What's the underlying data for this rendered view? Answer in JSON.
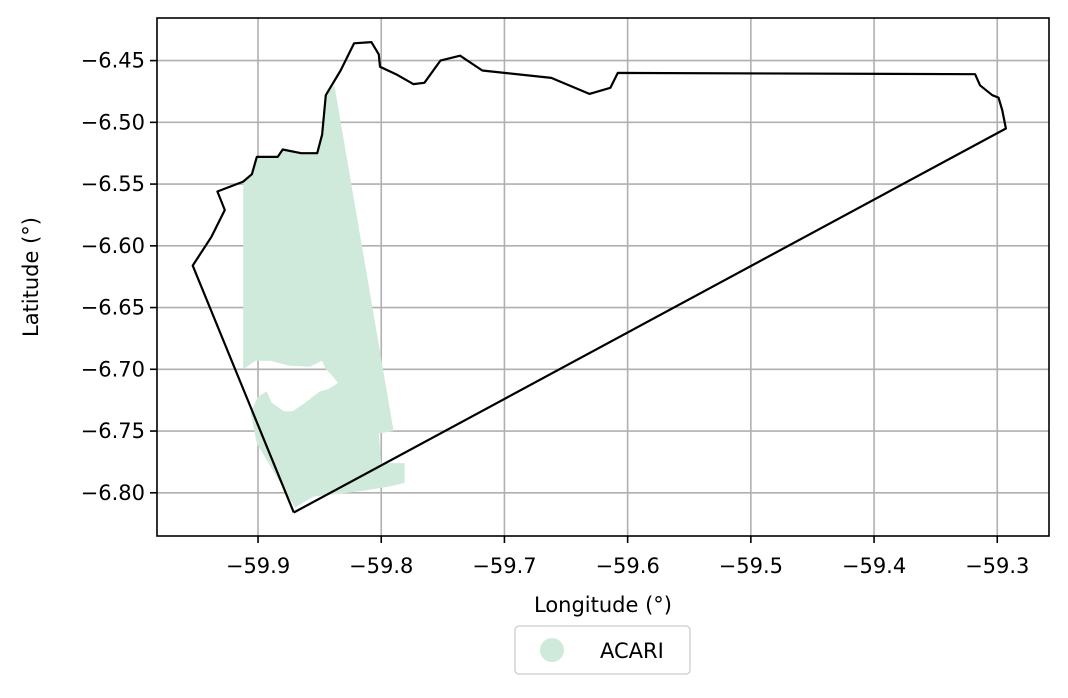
{
  "map": {
    "xlabel": "Longitude (°)",
    "ylabel": "Latitude (°)",
    "xlim": [
      -59.982,
      -59.258
    ],
    "ylim": [
      -6.835,
      -6.4155
    ],
    "grid": true,
    "x_ticks": [
      {
        "value": -59.9,
        "label": "−59.9"
      },
      {
        "value": -59.8,
        "label": "−59.8"
      },
      {
        "value": -59.7,
        "label": "−59.7"
      },
      {
        "value": -59.6,
        "label": "−59.6"
      },
      {
        "value": -59.5,
        "label": "−59.5"
      },
      {
        "value": -59.4,
        "label": "−59.4"
      },
      {
        "value": -59.3,
        "label": "−59.3"
      }
    ],
    "y_ticks": [
      {
        "value": -6.45,
        "label": "−6.45"
      },
      {
        "value": -6.5,
        "label": "−6.50"
      },
      {
        "value": -6.55,
        "label": "−6.55"
      },
      {
        "value": -6.6,
        "label": "−6.60"
      },
      {
        "value": -6.65,
        "label": "−6.65"
      },
      {
        "value": -6.7,
        "label": "−6.70"
      },
      {
        "value": -6.75,
        "label": "−6.75"
      },
      {
        "value": -6.8,
        "label": "−6.80"
      }
    ],
    "colors": {
      "boundary": "#000000",
      "fill": "#cfeadb",
      "grid": "#b0b0b0"
    },
    "legend": {
      "placement": "bottom-center",
      "entries": [
        {
          "label": "ACARI",
          "color": "#cfeadb",
          "marker": "circle"
        }
      ]
    },
    "layers": [
      {
        "name": "ACARI",
        "kind": "filled-area",
        "coordinates": [
          [
            -59.912,
            -6.548
          ],
          [
            -59.905,
            -6.542
          ],
          [
            -59.901,
            -6.528
          ],
          [
            -59.884,
            -6.528
          ],
          [
            -59.88,
            -6.522
          ],
          [
            -59.865,
            -6.525
          ],
          [
            -59.852,
            -6.525
          ],
          [
            -59.848,
            -6.51
          ],
          [
            -59.845,
            -6.478
          ],
          [
            -59.838,
            -6.47
          ],
          [
            -59.79,
            -6.75
          ],
          [
            -59.802,
            -6.752
          ],
          [
            -59.8,
            -6.776
          ],
          [
            -59.781,
            -6.776
          ],
          [
            -59.781,
            -6.792
          ],
          [
            -59.794,
            -6.795
          ],
          [
            -59.812,
            -6.798
          ],
          [
            -59.827,
            -6.8
          ],
          [
            -59.855,
            -6.803
          ],
          [
            -59.87,
            -6.812
          ],
          [
            -59.901,
            -6.76
          ],
          [
            -59.906,
            -6.735
          ],
          [
            -59.9,
            -6.722
          ],
          [
            -59.893,
            -6.718
          ],
          [
            -59.889,
            -6.727
          ],
          [
            -59.879,
            -6.734
          ],
          [
            -59.872,
            -6.734
          ],
          [
            -59.863,
            -6.728
          ],
          [
            -59.85,
            -6.718
          ],
          [
            -59.843,
            -6.716
          ],
          [
            -59.835,
            -6.711
          ],
          [
            -59.84,
            -6.705
          ],
          [
            -59.845,
            -6.7
          ],
          [
            -59.848,
            -6.693
          ],
          [
            -59.858,
            -6.698
          ],
          [
            -59.875,
            -6.697
          ],
          [
            -59.89,
            -6.693
          ],
          [
            -59.902,
            -6.693
          ],
          [
            -59.912,
            -6.7
          ],
          [
            -59.912,
            -6.6
          ]
        ]
      },
      {
        "name": "boundary",
        "kind": "outline",
        "coordinates": [
          [
            -59.871,
            -6.816
          ],
          [
            -59.953,
            -6.616
          ],
          [
            -59.938,
            -6.593
          ],
          [
            -59.927,
            -6.571
          ],
          [
            -59.933,
            -6.556
          ],
          [
            -59.912,
            -6.548
          ],
          [
            -59.905,
            -6.542
          ],
          [
            -59.901,
            -6.528
          ],
          [
            -59.884,
            -6.528
          ],
          [
            -59.88,
            -6.522
          ],
          [
            -59.865,
            -6.525
          ],
          [
            -59.852,
            -6.525
          ],
          [
            -59.848,
            -6.51
          ],
          [
            -59.845,
            -6.478
          ],
          [
            -59.833,
            -6.458
          ],
          [
            -59.822,
            -6.436
          ],
          [
            -59.808,
            -6.435
          ],
          [
            -59.802,
            -6.445
          ],
          [
            -59.801,
            -6.455
          ],
          [
            -59.788,
            -6.461
          ],
          [
            -59.774,
            -6.469
          ],
          [
            -59.765,
            -6.468
          ],
          [
            -59.752,
            -6.45
          ],
          [
            -59.736,
            -6.446
          ],
          [
            -59.718,
            -6.458
          ],
          [
            -59.662,
            -6.464
          ],
          [
            -59.631,
            -6.477
          ],
          [
            -59.614,
            -6.472
          ],
          [
            -59.608,
            -6.46
          ],
          [
            -59.318,
            -6.461
          ],
          [
            -59.314,
            -6.47
          ],
          [
            -59.304,
            -6.478
          ],
          [
            -59.299,
            -6.48
          ],
          [
            -59.296,
            -6.49
          ],
          [
            -59.293,
            -6.505
          ],
          [
            -59.871,
            -6.816
          ]
        ]
      }
    ]
  }
}
